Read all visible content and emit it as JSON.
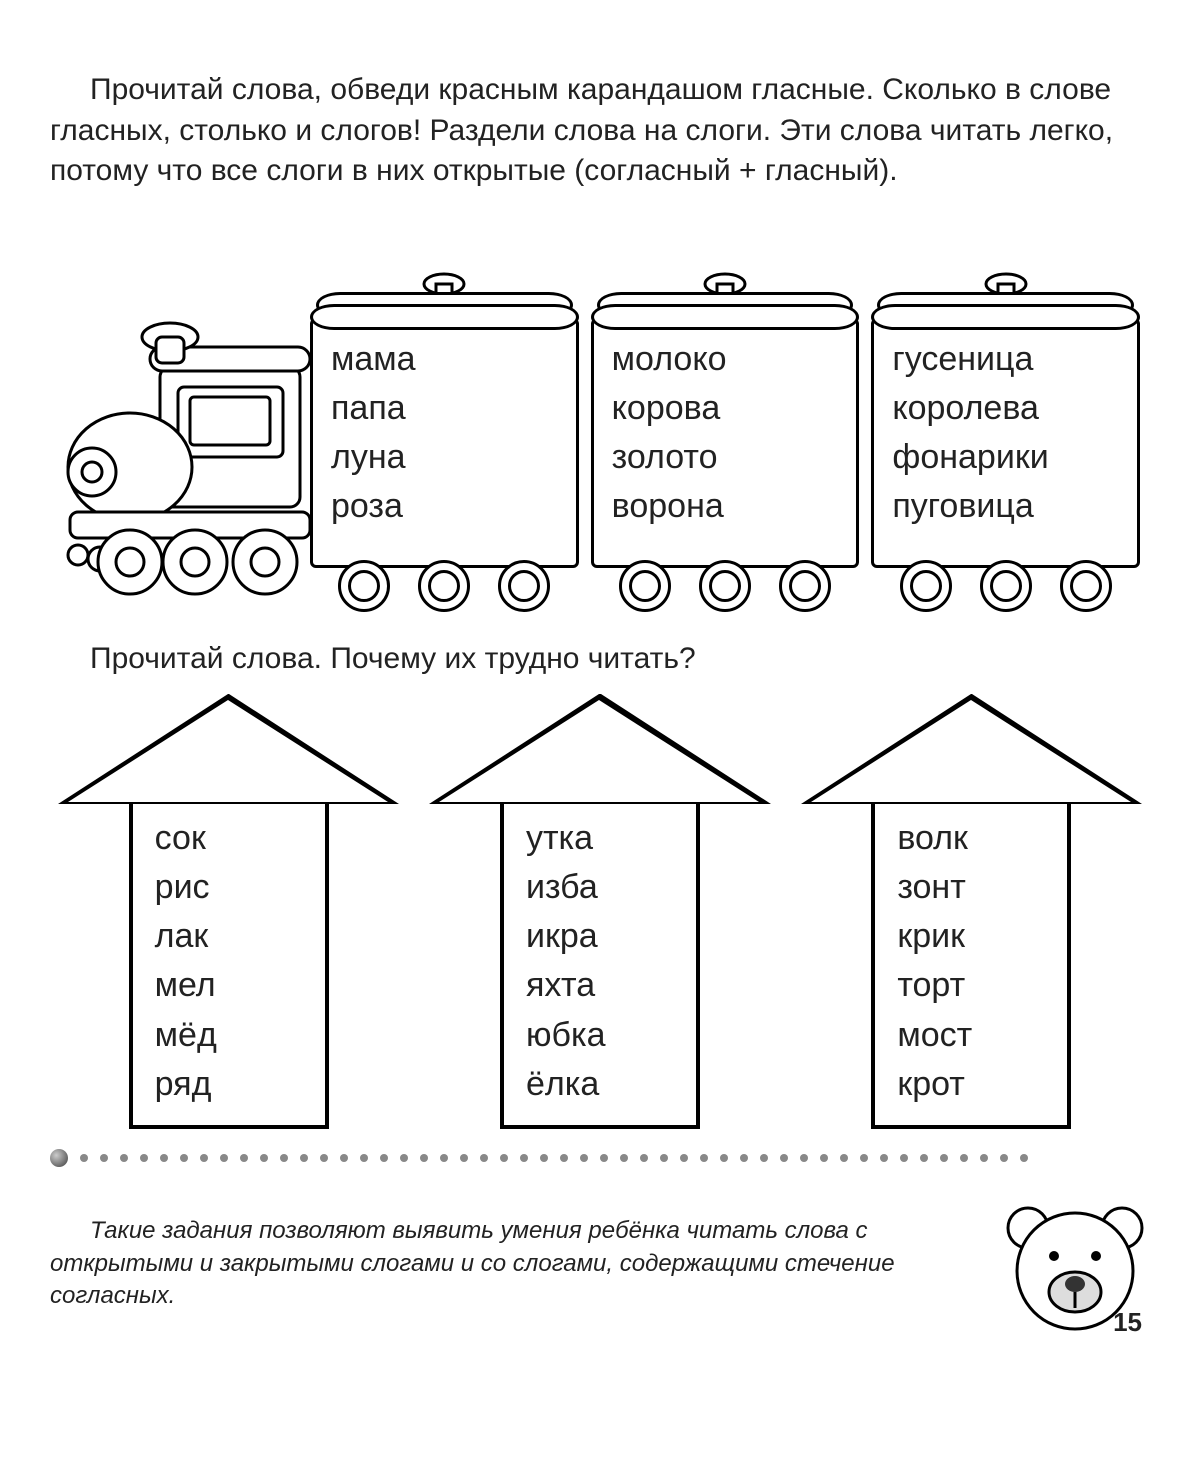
{
  "intro": "Прочитай слова, обведи красным карандашом гласные. Сколько в слове гласных, столько и слогов! Раздели слова на слоги. Эти слова читать легко, потому что все слоги в них открытые (согласный + гласный).",
  "train": {
    "cars": [
      {
        "words": [
          "мама",
          "папа",
          "луна",
          "роза"
        ]
      },
      {
        "words": [
          "молоко",
          "корова",
          "золото",
          "ворона"
        ]
      },
      {
        "words": [
          "гусеница",
          "королева",
          "фонарики",
          "пуговица"
        ]
      }
    ],
    "stroke": "#000000",
    "word_fontsize": 34
  },
  "subhead": "Прочитай слова. Почему их трудно читать?",
  "arrows": [
    {
      "words": [
        "сок",
        "рис",
        "лак",
        "мел",
        "мёд",
        "ряд"
      ]
    },
    {
      "words": [
        "утка",
        "изба",
        "икра",
        "яхта",
        "юбка",
        "ёлка"
      ]
    },
    {
      "words": [
        "волк",
        "зонт",
        "крик",
        "торт",
        "мост",
        "крот"
      ]
    }
  ],
  "arrow_style": {
    "border_width": 4,
    "body_width": 200,
    "head_height": 110,
    "word_fontsize": 34
  },
  "footnote": "Такие задания позволяют выявить умения ребёнка читать слова с открытыми и закрытыми слогами и со слогами, содержащими стечение согласных.",
  "page_number": "15",
  "colors": {
    "text": "#222222",
    "background": "#ffffff",
    "stroke": "#000000",
    "dot": "#888888"
  },
  "typography": {
    "body_fontsize": 30,
    "footnote_fontsize": 24,
    "footnote_style": "italic",
    "font_family": "Arial"
  }
}
